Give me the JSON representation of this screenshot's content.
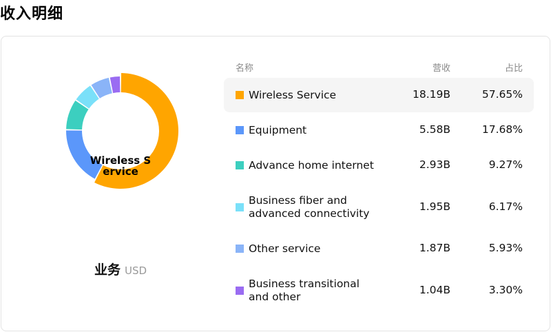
{
  "page_title": "收入明细",
  "caption": {
    "main": "业务",
    "unit": "USD"
  },
  "table": {
    "headers": {
      "name": "名称",
      "revenue": "营收",
      "share": "占比"
    }
  },
  "chart_data": {
    "type": "pie",
    "donut": true,
    "center_label": "Wireless Service",
    "selected": 0,
    "categories": [
      "Wireless Service",
      "Equipment",
      "Advance home internet",
      "Business fiber and advanced connectivity",
      "Other service",
      "Business transitional and other"
    ],
    "values": [
      57.65,
      17.68,
      9.27,
      6.17,
      5.93,
      3.3
    ],
    "revenue_labels": [
      "18.19B",
      "5.58B",
      "2.93B",
      "1.95B",
      "1.87B",
      "1.04B"
    ],
    "share_labels": [
      "57.65%",
      "17.68%",
      "9.27%",
      "6.17%",
      "5.93%",
      "3.30%"
    ],
    "name_lines": [
      [
        "Wireless Service"
      ],
      [
        "Equipment"
      ],
      [
        "Advance home internet"
      ],
      [
        "Business fiber and",
        "advanced connectivity"
      ],
      [
        "Other service"
      ],
      [
        "Business transitional",
        "and other"
      ]
    ],
    "colors": [
      "#FFA500",
      "#5B97FA",
      "#3CCFBF",
      "#7AE0F9",
      "#8AB4F8",
      "#9A6CF2"
    ]
  }
}
